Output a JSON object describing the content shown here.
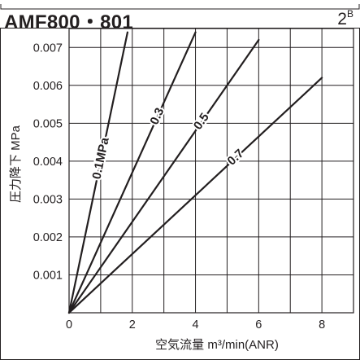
{
  "header": {
    "model": "AMF800・801",
    "page_ref_base": "2",
    "page_ref_sup": "B"
  },
  "chart_data": {
    "type": "line",
    "title": "",
    "xlabel": "空気流量 m³/min(ANR)",
    "ylabel": "圧力降下 MPa",
    "xlim": [
      0,
      9
    ],
    "ylim": [
      0,
      0.0075
    ],
    "x_ticks": [
      0,
      2,
      4,
      6,
      8
    ],
    "x_tick_labels": [
      "0",
      "2",
      "4",
      "6",
      "8"
    ],
    "y_ticks": [
      0.001,
      0.002,
      0.003,
      0.004,
      0.005,
      0.006,
      0.007
    ],
    "y_tick_labels": [
      "0.001",
      "0.002",
      "0.003",
      "0.004",
      "0.005",
      "0.006",
      "0.007"
    ],
    "grid": true,
    "series": [
      {
        "name": "0.1MPa",
        "x": [
          0,
          1.85
        ],
        "y": [
          0,
          0.0074
        ]
      },
      {
        "name": "0.3",
        "x": [
          0,
          4.0
        ],
        "y": [
          0,
          0.0074
        ]
      },
      {
        "name": "0.5",
        "x": [
          0,
          6.0
        ],
        "y": [
          0,
          0.0072
        ]
      },
      {
        "name": "0.7",
        "x": [
          0,
          8.0
        ],
        "y": [
          0,
          0.0062
        ]
      }
    ],
    "colors": {
      "line": "#231f20",
      "grid": "#231f20",
      "background": "#ffffff"
    }
  }
}
